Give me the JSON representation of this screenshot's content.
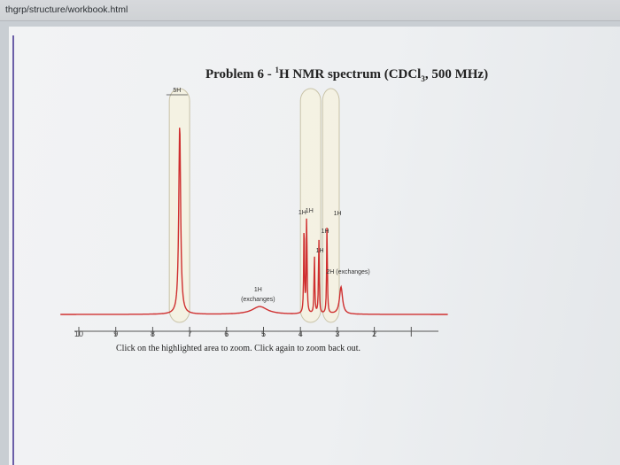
{
  "browser": {
    "url": "thgrp/structure/workbook.html"
  },
  "page": {
    "title_prefix": "Problem 6 - ",
    "title_sup": "1",
    "title_main": "H NMR spectrum (CDCl",
    "title_sub": "3",
    "title_suffix": ", 500 MHz)",
    "instructions": "Click on the highlighted area to zoom. Click again to zoom back out."
  },
  "chart_data": {
    "type": "line",
    "title": "Problem 6 - 1H NMR spectrum (CDCl3, 500 MHz)",
    "xlabel": "",
    "ylabel": "",
    "xlim": [
      10.5,
      0
    ],
    "x_ticks": [
      10,
      9,
      8,
      7,
      6,
      5,
      4,
      3,
      2,
      1
    ],
    "x_tick_labels": [
      "10",
      "9",
      "8",
      "7",
      "6",
      "5",
      "4",
      "3",
      "2",
      ""
    ],
    "peaks": [
      {
        "ppm": 7.27,
        "height": 0.98,
        "width": 0.03,
        "label": "5H"
      },
      {
        "ppm": 5.1,
        "height": 0.04,
        "width": 0.25,
        "label": "1H (exchanges)"
      },
      {
        "ppm": 3.9,
        "height": 0.48,
        "width": 0.012,
        "label": "1H"
      },
      {
        "ppm": 3.83,
        "height": 0.51,
        "width": 0.012,
        "label": "1H"
      },
      {
        "ppm": 3.62,
        "height": 0.3,
        "width": 0.012,
        "label": "1H"
      },
      {
        "ppm": 3.5,
        "height": 0.39,
        "width": 0.012,
        "label": "1H"
      },
      {
        "ppm": 3.28,
        "height": 0.45,
        "width": 0.012,
        "label": "1H"
      },
      {
        "ppm": 2.9,
        "height": 0.14,
        "width": 0.05,
        "label": "2H (exchanges)"
      }
    ],
    "highlight_regions": [
      {
        "from": 7.55,
        "to": 7.0
      },
      {
        "from": 4.0,
        "to": 3.45
      },
      {
        "from": 3.4,
        "to": 2.95
      }
    ]
  }
}
